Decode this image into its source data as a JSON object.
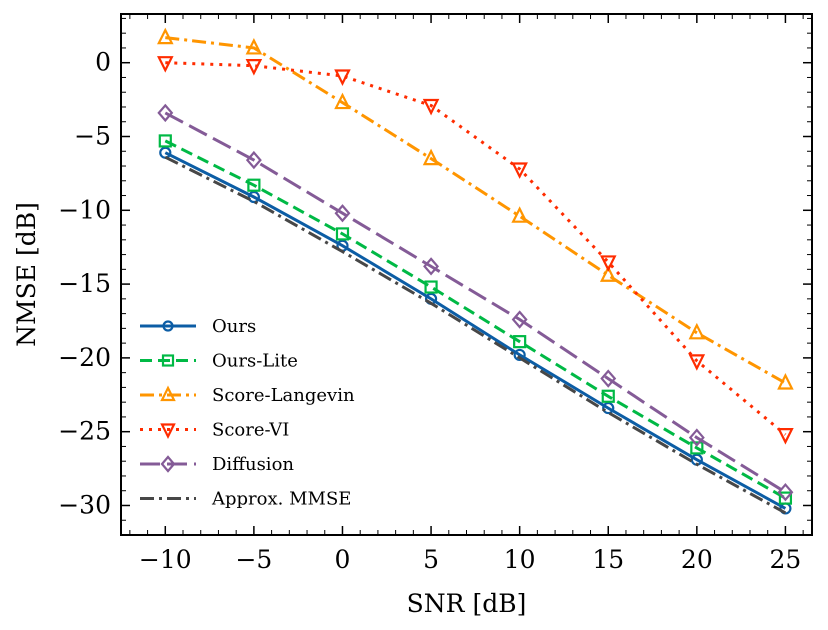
{
  "chart_data": {
    "type": "line",
    "title": "",
    "xlabel": "SNR [dB]",
    "ylabel": "NMSE [dB]",
    "x": [
      -10,
      -5,
      0,
      5,
      10,
      15,
      20,
      25
    ],
    "xlim": [
      -12.5,
      26.5
    ],
    "ylim": [
      -32,
      3.3
    ],
    "xticks": [
      -10,
      -5,
      0,
      5,
      10,
      15,
      20,
      25
    ],
    "yticks": [
      0,
      -5,
      -10,
      -15,
      -20,
      -25,
      -30
    ],
    "grid": false,
    "legend_position": "lower-left",
    "series": [
      {
        "name": "Ours",
        "color": "#0C5DA5",
        "dash": "solid",
        "marker": "circle",
        "values": [
          -6.1,
          -9.1,
          -12.4,
          -16.0,
          -19.8,
          -23.4,
          -26.9,
          -30.2
        ]
      },
      {
        "name": "Ours-Lite",
        "color": "#00B945",
        "dash": "dashed",
        "marker": "square",
        "values": [
          -5.3,
          -8.3,
          -11.6,
          -15.2,
          -18.9,
          -22.6,
          -26.1,
          -29.5
        ]
      },
      {
        "name": "Score-Langevin",
        "color": "#FF9500",
        "dash": "dashdot",
        "marker": "triangle-up",
        "values": [
          1.7,
          1.0,
          -2.7,
          -6.5,
          -10.4,
          -14.4,
          -18.3,
          -21.7
        ]
      },
      {
        "name": "Score-VI",
        "color": "#FF2C00",
        "dash": "dotted",
        "marker": "triangle-down",
        "values": [
          0.0,
          -0.2,
          -0.9,
          -2.9,
          -7.2,
          -13.5,
          -20.2,
          -25.2
        ]
      },
      {
        "name": "Diffusion",
        "color": "#845B97",
        "dash": "longdash",
        "marker": "diamond",
        "values": [
          -3.4,
          -6.6,
          -10.2,
          -13.8,
          -17.4,
          -21.4,
          -25.4,
          -29.1
        ]
      },
      {
        "name": "Approx. MMSE",
        "color": "#474747",
        "dash": "dashdot",
        "marker": "none",
        "values": [
          -6.4,
          -9.4,
          -12.8,
          -16.3,
          -20.0,
          -23.7,
          -27.2,
          -30.5
        ]
      }
    ]
  }
}
